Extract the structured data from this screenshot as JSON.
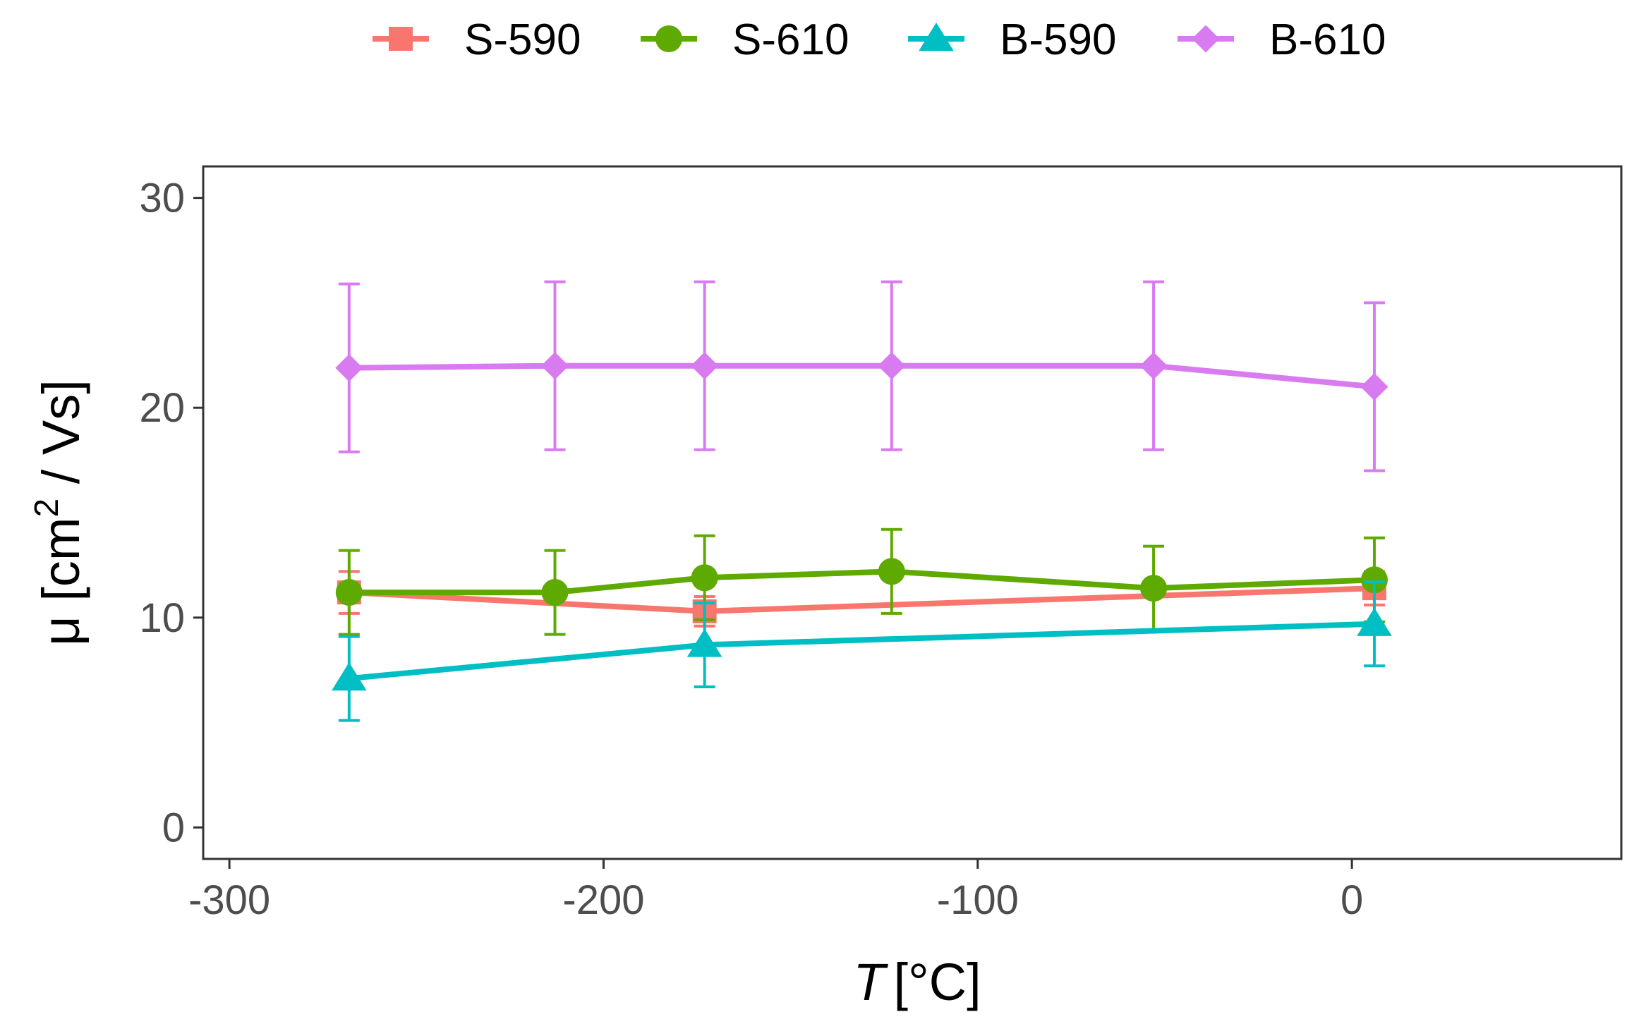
{
  "chart_data": {
    "type": "line",
    "title": "",
    "xlabel": "[°C]",
    "xlabel_var": "T",
    "ylabel_prefix": "μ [cm",
    "ylabel_sup": "2",
    "ylabel_suffix": " / Vs]",
    "xlim": [
      -307,
      72
    ],
    "ylim": [
      -1.5,
      31.5
    ],
    "x_ticks": [
      -300,
      -200,
      -100,
      0
    ],
    "x_tick_labels": [
      "-300",
      "-200",
      "-100",
      "0"
    ],
    "y_ticks": [
      0,
      10,
      20,
      30
    ],
    "y_tick_labels": [
      "0",
      "10",
      "20",
      "30"
    ],
    "grid": false,
    "legend_position": "top",
    "series": [
      {
        "name": "S-590",
        "color": "#F8766D",
        "marker": "square",
        "x": [
          -268,
          -173,
          6
        ],
        "y": [
          11.2,
          10.3,
          11.4
        ],
        "err": [
          1.0,
          0.7,
          0.8
        ]
      },
      {
        "name": "S-610",
        "color": "#5FAA00",
        "marker": "circle",
        "x": [
          -268,
          -213,
          -173,
          -123,
          -53,
          6
        ],
        "y": [
          11.2,
          11.2,
          11.9,
          12.2,
          11.4,
          11.8
        ],
        "err": [
          2.0,
          2.0,
          2.0,
          2.0,
          2.0,
          2.0
        ]
      },
      {
        "name": "B-590",
        "color": "#00BFC4",
        "marker": "triangle",
        "x": [
          -268,
          -173,
          6
        ],
        "y": [
          7.1,
          8.7,
          9.7
        ],
        "err": [
          2.0,
          2.0,
          2.0
        ]
      },
      {
        "name": "B-610",
        "color": "#D97BF0",
        "marker": "diamond",
        "x": [
          -268,
          -213,
          -173,
          -123,
          -53,
          6
        ],
        "y": [
          21.9,
          22.0,
          22.0,
          22.0,
          22.0,
          21.0
        ],
        "err": [
          4.0,
          4.0,
          4.0,
          4.0,
          4.0,
          4.0
        ]
      }
    ]
  }
}
